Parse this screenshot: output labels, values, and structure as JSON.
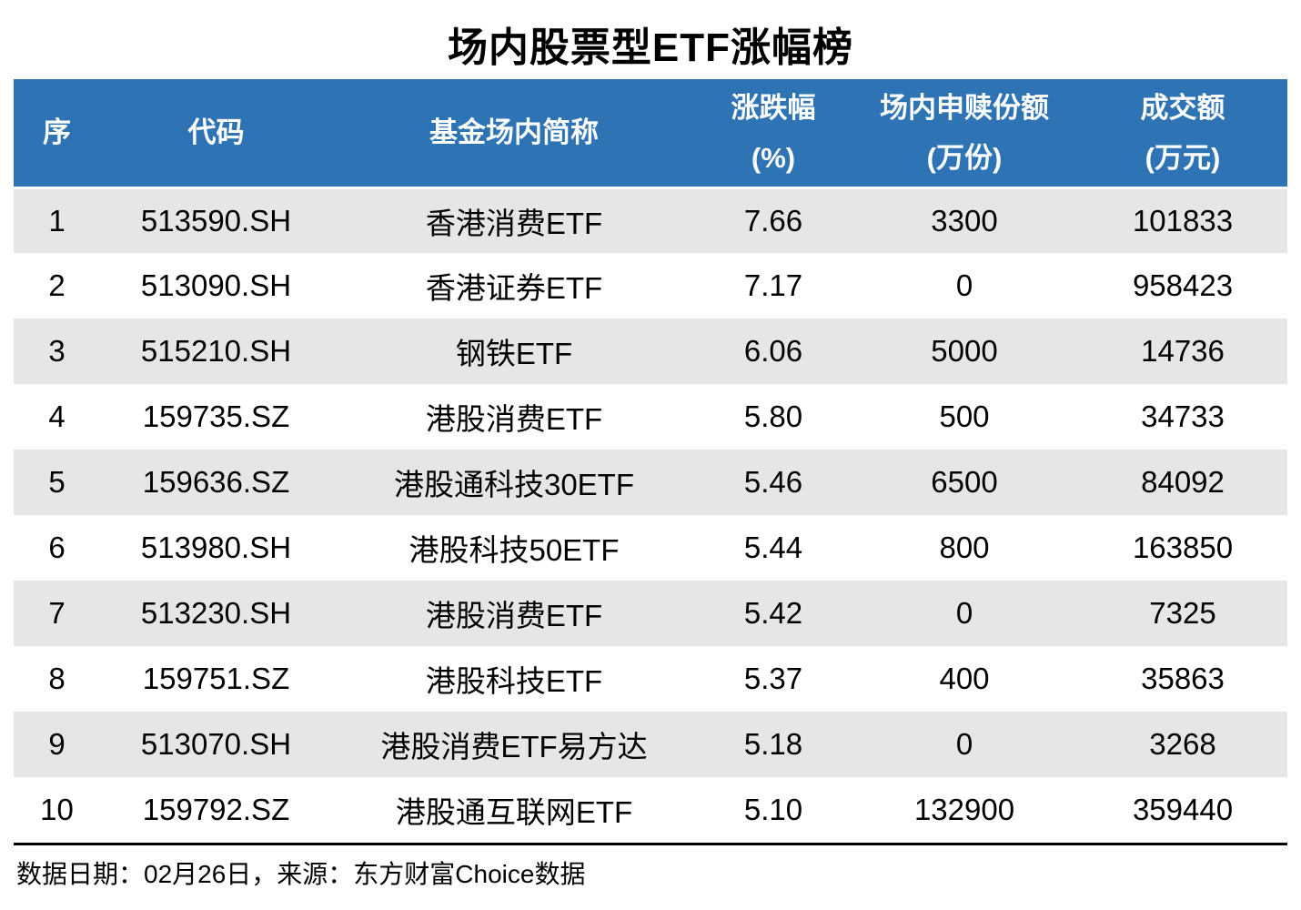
{
  "page": {
    "title": "场内股票型ETF涨幅榜"
  },
  "colors": {
    "header_bg": "#2E74B5",
    "header_text": "#FFFFFF",
    "stripe_bg": "#E7E6E6",
    "row_bg": "#FFFFFF",
    "text": "#000000",
    "divider": "#000000"
  },
  "table": {
    "headers": [
      {
        "line1": "序"
      },
      {
        "line1": "代码"
      },
      {
        "line1": "基金场内简称"
      },
      {
        "line1": "涨跌幅",
        "line2": "(%)"
      },
      {
        "line1": "场内申赎份额",
        "line2": "(万份)"
      },
      {
        "line1": "成交额",
        "line2": "(万元)"
      }
    ],
    "rows": [
      {
        "seq": "1",
        "code": "513590.SH",
        "name": "香港消费ETF",
        "change_pct": "7.66",
        "shares_wan": "3300",
        "turnover_wan": "101833"
      },
      {
        "seq": "2",
        "code": "513090.SH",
        "name": "香港证券ETF",
        "change_pct": "7.17",
        "shares_wan": "0",
        "turnover_wan": "958423"
      },
      {
        "seq": "3",
        "code": "515210.SH",
        "name": "钢铁ETF",
        "change_pct": "6.06",
        "shares_wan": "5000",
        "turnover_wan": "14736"
      },
      {
        "seq": "4",
        "code": "159735.SZ",
        "name": "港股消费ETF",
        "change_pct": "5.80",
        "shares_wan": "500",
        "turnover_wan": "34733"
      },
      {
        "seq": "5",
        "code": "159636.SZ",
        "name": "港股通科技30ETF",
        "change_pct": "5.46",
        "shares_wan": "6500",
        "turnover_wan": "84092"
      },
      {
        "seq": "6",
        "code": "513980.SH",
        "name": "港股科技50ETF",
        "change_pct": "5.44",
        "shares_wan": "800",
        "turnover_wan": "163850"
      },
      {
        "seq": "7",
        "code": "513230.SH",
        "name": "港股消费ETF",
        "change_pct": "5.42",
        "shares_wan": "0",
        "turnover_wan": "7325"
      },
      {
        "seq": "8",
        "code": "159751.SZ",
        "name": "港股科技ETF",
        "change_pct": "5.37",
        "shares_wan": "400",
        "turnover_wan": "35863"
      },
      {
        "seq": "9",
        "code": "513070.SH",
        "name": "港股消费ETF易方达",
        "change_pct": "5.18",
        "shares_wan": "0",
        "turnover_wan": "3268"
      },
      {
        "seq": "10",
        "code": "159792.SZ",
        "name": "港股通互联网ETF",
        "change_pct": "5.10",
        "shares_wan": "132900",
        "turnover_wan": "359440"
      }
    ]
  },
  "footer": {
    "source_note": "数据日期：02月26日，来源：东方财富Choice数据"
  },
  "chart_data": {
    "type": "table",
    "title": "场内股票型ETF涨幅榜",
    "columns": [
      "序",
      "代码",
      "基金场内简称",
      "涨跌幅(%)",
      "场内申赎份额(万份)",
      "成交额(万元)"
    ],
    "rows": [
      [
        1,
        "513590.SH",
        "香港消费ETF",
        7.66,
        3300,
        101833
      ],
      [
        2,
        "513090.SH",
        "香港证券ETF",
        7.17,
        0,
        958423
      ],
      [
        3,
        "515210.SH",
        "钢铁ETF",
        6.06,
        5000,
        14736
      ],
      [
        4,
        "159735.SZ",
        "港股消费ETF",
        5.8,
        500,
        34733
      ],
      [
        5,
        "159636.SZ",
        "港股通科技30ETF",
        5.46,
        6500,
        84092
      ],
      [
        6,
        "513980.SH",
        "港股科技50ETF",
        5.44,
        800,
        163850
      ],
      [
        7,
        "513230.SH",
        "港股消费ETF",
        5.42,
        0,
        7325
      ],
      [
        8,
        "159751.SZ",
        "港股科技ETF",
        5.37,
        400,
        35863
      ],
      [
        9,
        "513070.SH",
        "港股消费ETF易方达",
        5.18,
        0,
        3268
      ],
      [
        10,
        "159792.SZ",
        "港股通互联网ETF",
        5.1,
        132900,
        359440
      ]
    ],
    "note": "数据日期：02月26日，来源：东方财富Choice数据",
    "layout": {
      "header_bg": "#2E74B5",
      "row_stripe": "alternating gray/white",
      "legend": "none",
      "grid": "off"
    }
  }
}
